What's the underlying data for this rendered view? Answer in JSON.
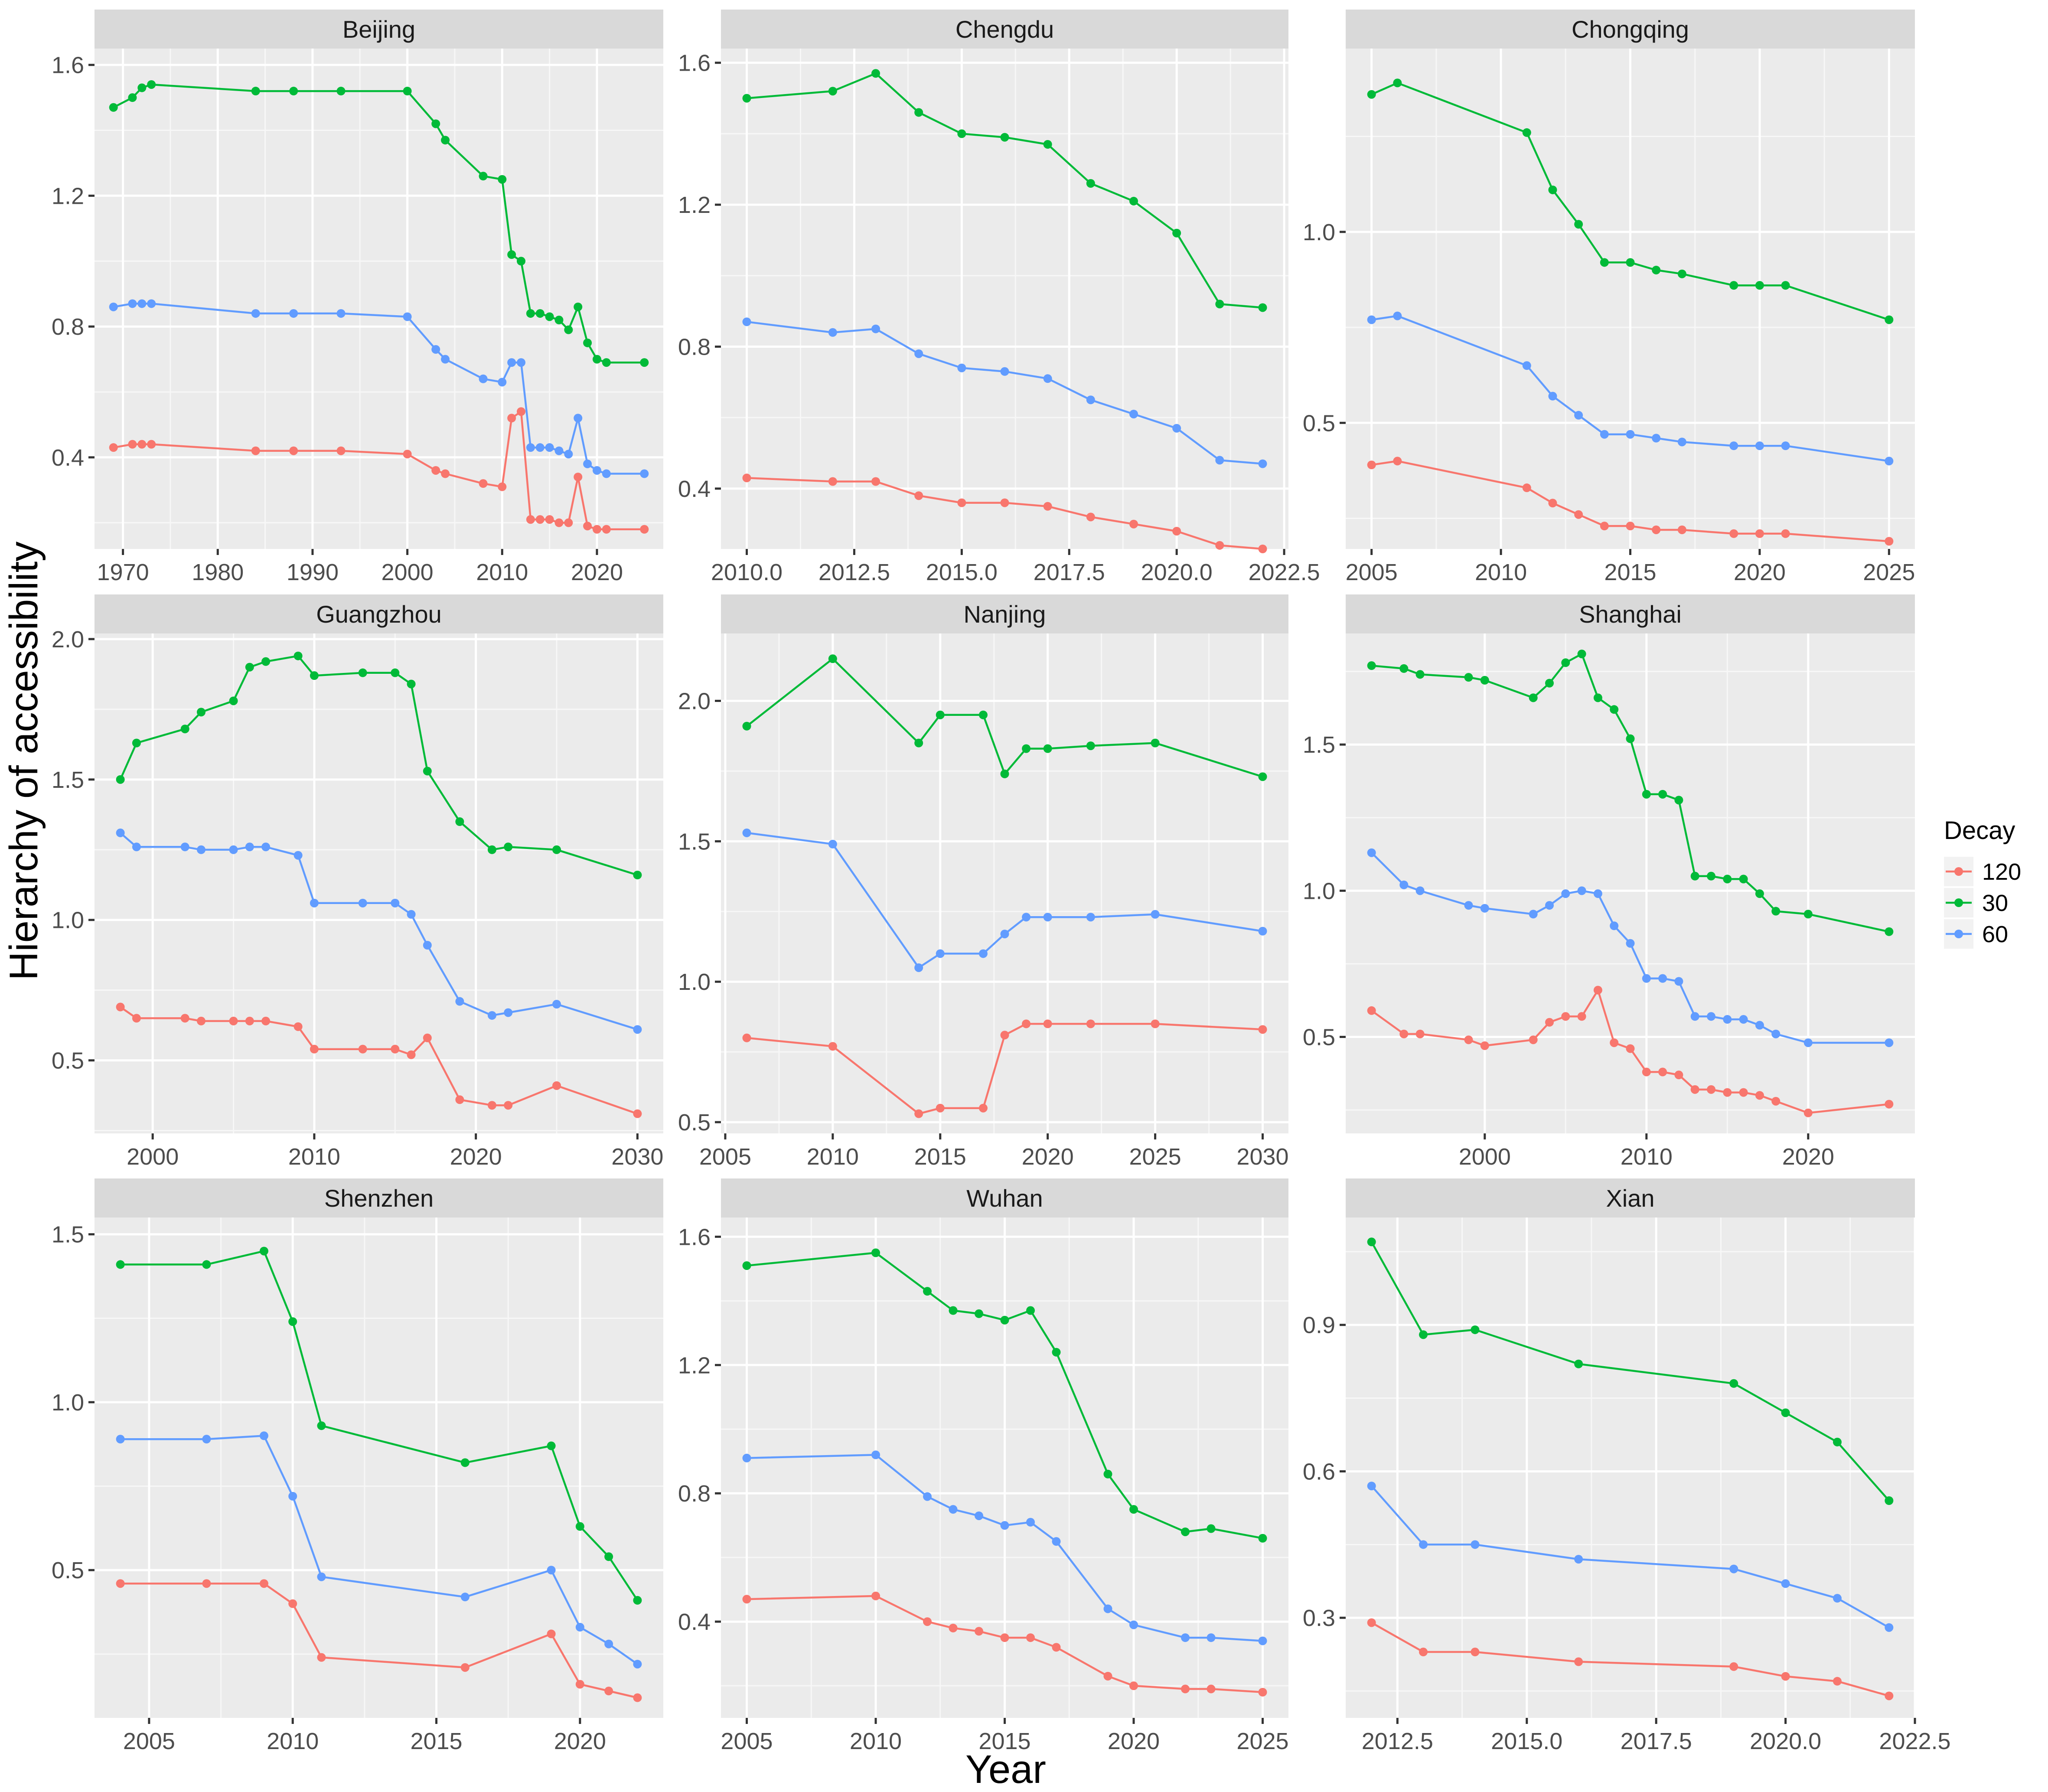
{
  "chart_data": {
    "type": "line",
    "facet_type": "facet_wrap",
    "xlabel": "Year",
    "ylabel": "Hierarchy of accessibility",
    "legend": {
      "title": "Decay",
      "placement": "right",
      "entries": [
        {
          "name": "120",
          "color": "#F8766D"
        },
        {
          "name": "30",
          "color": "#00BA38"
        },
        {
          "name": "60",
          "color": "#619CFF"
        }
      ]
    },
    "panels": [
      {
        "title": "Beijing",
        "xlim": [
          1967,
          2027
        ],
        "ylim": [
          0.12,
          1.65
        ],
        "xticks": [
          1970,
          1980,
          1990,
          2000,
          2010,
          2020
        ],
        "xtick_labels": [
          "1970",
          "1980",
          "1990",
          "2000",
          "2010",
          "2020"
        ],
        "yticks": [
          0.4,
          0.8,
          1.2,
          1.6
        ],
        "ytick_labels": [
          "0.4",
          "0.8",
          "1.2",
          "1.6"
        ],
        "x": [
          1969,
          1971,
          1972,
          1973,
          1984,
          1988,
          1993,
          2000,
          2003,
          2004,
          2008,
          2010,
          2011,
          2012,
          2013,
          2014,
          2015,
          2016,
          2017,
          2018,
          2019,
          2020,
          2021,
          2025
        ],
        "series": [
          {
            "name": "120",
            "values": [
              0.43,
              0.44,
              0.44,
              0.44,
              0.42,
              0.42,
              0.42,
              0.41,
              0.36,
              0.35,
              0.32,
              0.31,
              0.52,
              0.54,
              0.21,
              0.21,
              0.21,
              0.2,
              0.2,
              0.34,
              0.19,
              0.18,
              0.18,
              0.18
            ]
          },
          {
            "name": "30",
            "values": [
              1.47,
              1.5,
              1.53,
              1.54,
              1.52,
              1.52,
              1.52,
              1.52,
              1.42,
              1.37,
              1.26,
              1.25,
              1.02,
              1.0,
              0.84,
              0.84,
              0.83,
              0.82,
              0.79,
              0.86,
              0.75,
              0.7,
              0.69,
              0.69
            ]
          },
          {
            "name": "60",
            "values": [
              0.86,
              0.87,
              0.87,
              0.87,
              0.84,
              0.84,
              0.84,
              0.83,
              0.73,
              0.7,
              0.64,
              0.63,
              0.69,
              0.69,
              0.43,
              0.43,
              0.43,
              0.42,
              0.41,
              0.52,
              0.38,
              0.36,
              0.35,
              0.35
            ]
          }
        ]
      },
      {
        "title": "Chengdu",
        "xlim": [
          2009.4,
          2022.6
        ],
        "ylim": [
          0.23,
          1.64
        ],
        "xticks": [
          2010,
          2012.5,
          2015,
          2017.5,
          2020,
          2022.5
        ],
        "xtick_labels": [
          "2010.0",
          "2012.5",
          "2015.0",
          "2017.5",
          "2020.0",
          "2022.5"
        ],
        "yticks": [
          0.4,
          0.8,
          1.2,
          1.6
        ],
        "ytick_labels": [
          "0.4",
          "0.8",
          "1.2",
          "1.6"
        ],
        "x": [
          2010,
          2012,
          2013,
          2014,
          2015,
          2016,
          2017,
          2018,
          2019,
          2020,
          2021,
          2022
        ],
        "series": [
          {
            "name": "120",
            "values": [
              0.43,
              0.42,
              0.42,
              0.38,
              0.36,
              0.36,
              0.35,
              0.32,
              0.3,
              0.28,
              0.24,
              0.23
            ]
          },
          {
            "name": "30",
            "values": [
              1.5,
              1.52,
              1.57,
              1.46,
              1.4,
              1.39,
              1.37,
              1.26,
              1.21,
              1.12,
              0.92,
              0.91
            ]
          },
          {
            "name": "60",
            "values": [
              0.87,
              0.84,
              0.85,
              0.78,
              0.74,
              0.73,
              0.71,
              0.65,
              0.61,
              0.57,
              0.48,
              0.47
            ]
          }
        ]
      },
      {
        "title": "Chongqing",
        "xlim": [
          2004,
          2026
        ],
        "ylim": [
          0.17,
          1.48
        ],
        "xticks": [
          2005,
          2010,
          2015,
          2020,
          2025
        ],
        "xtick_labels": [
          "2005",
          "2010",
          "2015",
          "2020",
          "2025"
        ],
        "yticks": [
          0.5,
          1.0
        ],
        "ytick_labels": [
          "0.5",
          "1.0"
        ],
        "x": [
          2005,
          2006,
          2011,
          2012,
          2013,
          2014,
          2015,
          2016,
          2017,
          2019,
          2020,
          2021,
          2025
        ],
        "series": [
          {
            "name": "120",
            "values": [
              0.39,
              0.4,
              0.33,
              0.29,
              0.26,
              0.23,
              0.23,
              0.22,
              0.22,
              0.21,
              0.21,
              0.21,
              0.19
            ]
          },
          {
            "name": "30",
            "values": [
              1.36,
              1.39,
              1.26,
              1.11,
              1.02,
              0.92,
              0.92,
              0.9,
              0.89,
              0.86,
              0.86,
              0.86,
              0.77
            ]
          },
          {
            "name": "60",
            "values": [
              0.77,
              0.78,
              0.65,
              0.57,
              0.52,
              0.47,
              0.47,
              0.46,
              0.45,
              0.44,
              0.44,
              0.44,
              0.4
            ]
          }
        ]
      },
      {
        "title": "Guangzhou",
        "xlim": [
          1996.4,
          2031.6
        ],
        "ylim": [
          0.24,
          2.02
        ],
        "xticks": [
          2000,
          2010,
          2020,
          2030
        ],
        "xtick_labels": [
          "2000",
          "2010",
          "2020",
          "2030"
        ],
        "yticks": [
          0.5,
          1.0,
          1.5,
          2.0
        ],
        "ytick_labels": [
          "0.5",
          "1.0",
          "1.5",
          "2.0"
        ],
        "x": [
          1998,
          1999,
          2002,
          2003,
          2005,
          2006,
          2007,
          2009,
          2010,
          2013,
          2015,
          2016,
          2017,
          2019,
          2021,
          2022,
          2025,
          2030
        ],
        "series": [
          {
            "name": "120",
            "values": [
              0.69,
              0.65,
              0.65,
              0.64,
              0.64,
              0.64,
              0.64,
              0.62,
              0.54,
              0.54,
              0.54,
              0.52,
              0.58,
              0.36,
              0.34,
              0.34,
              0.41,
              0.31
            ]
          },
          {
            "name": "30",
            "values": [
              1.5,
              1.63,
              1.68,
              1.74,
              1.78,
              1.9,
              1.92,
              1.94,
              1.87,
              1.88,
              1.88,
              1.84,
              1.53,
              1.35,
              1.25,
              1.26,
              1.25,
              1.16
            ]
          },
          {
            "name": "60",
            "values": [
              1.31,
              1.26,
              1.26,
              1.25,
              1.25,
              1.26,
              1.26,
              1.23,
              1.06,
              1.06,
              1.06,
              1.02,
              0.91,
              0.71,
              0.66,
              0.67,
              0.7,
              0.61
            ]
          }
        ]
      },
      {
        "title": "Nanjing",
        "xlim": [
          2004.8,
          2031.2
        ],
        "ylim": [
          0.46,
          2.24
        ],
        "xticks": [
          2005,
          2010,
          2015,
          2020,
          2025,
          2030
        ],
        "xtick_labels": [
          "2005",
          "2010",
          "2015",
          "2020",
          "2025",
          "2030"
        ],
        "yticks": [
          0.5,
          1.0,
          1.5,
          2.0
        ],
        "ytick_labels": [
          "0.5",
          "1.0",
          "1.5",
          "2.0"
        ],
        "x": [
          2006,
          2010,
          2014,
          2015,
          2017,
          2018,
          2019,
          2020,
          2022,
          2025,
          2030
        ],
        "series": [
          {
            "name": "120",
            "values": [
              0.8,
              0.77,
              0.53,
              0.55,
              0.55,
              0.81,
              0.85,
              0.85,
              0.85,
              0.85,
              0.83
            ]
          },
          {
            "name": "30",
            "values": [
              1.91,
              2.15,
              1.85,
              1.95,
              1.95,
              1.74,
              1.83,
              1.83,
              1.84,
              1.85,
              1.73
            ]
          },
          {
            "name": "60",
            "values": [
              1.53,
              1.49,
              1.05,
              1.1,
              1.1,
              1.17,
              1.23,
              1.23,
              1.23,
              1.24,
              1.18
            ]
          }
        ]
      },
      {
        "title": "Shanghai",
        "xlim": [
          1991.4,
          2026.6
        ],
        "ylim": [
          0.17,
          1.88
        ],
        "xticks": [
          2000,
          2010,
          2020
        ],
        "xtick_labels": [
          "2000",
          "2010",
          "2020"
        ],
        "yticks": [
          0.5,
          1.0,
          1.5
        ],
        "ytick_labels": [
          "0.5",
          "1.0",
          "1.5"
        ],
        "x": [
          1993,
          1995,
          1996,
          1999,
          2000,
          2003,
          2004,
          2005,
          2006,
          2007,
          2008,
          2009,
          2010,
          2011,
          2012,
          2013,
          2014,
          2015,
          2016,
          2017,
          2018,
          2020,
          2025
        ],
        "series": [
          {
            "name": "120",
            "values": [
              0.59,
              0.51,
              0.51,
              0.49,
              0.47,
              0.49,
              0.55,
              0.57,
              0.57,
              0.66,
              0.48,
              0.46,
              0.38,
              0.38,
              0.37,
              0.32,
              0.32,
              0.31,
              0.31,
              0.3,
              0.28,
              0.24,
              0.27
            ]
          },
          {
            "name": "30",
            "values": [
              1.77,
              1.76,
              1.74,
              1.73,
              1.72,
              1.66,
              1.71,
              1.78,
              1.81,
              1.66,
              1.62,
              1.52,
              1.33,
              1.33,
              1.31,
              1.05,
              1.05,
              1.04,
              1.04,
              0.99,
              0.93,
              0.92,
              0.86
            ]
          },
          {
            "name": "60",
            "values": [
              1.13,
              1.02,
              1.0,
              0.95,
              0.94,
              0.92,
              0.95,
              0.99,
              1.0,
              0.99,
              0.88,
              0.82,
              0.7,
              0.7,
              0.69,
              0.57,
              0.57,
              0.56,
              0.56,
              0.54,
              0.51,
              0.48,
              0.48
            ]
          }
        ]
      },
      {
        "title": "Shenzhen",
        "xlim": [
          2003.1,
          2022.9
        ],
        "ylim": [
          0.06,
          1.55
        ],
        "xticks": [
          2005,
          2010,
          2015,
          2020
        ],
        "xtick_labels": [
          "2005",
          "2010",
          "2015",
          "2020"
        ],
        "yticks": [
          0.5,
          1.0,
          1.5
        ],
        "ytick_labels": [
          "0.5",
          "1.0",
          "1.5"
        ],
        "x": [
          2004,
          2007,
          2009,
          2010,
          2011,
          2016,
          2019,
          2020,
          2021,
          2022
        ],
        "series": [
          {
            "name": "120",
            "values": [
              0.46,
              0.46,
              0.46,
              0.4,
              0.24,
              0.21,
              0.31,
              0.16,
              0.14,
              0.12
            ]
          },
          {
            "name": "30",
            "values": [
              1.41,
              1.41,
              1.45,
              1.24,
              0.93,
              0.82,
              0.87,
              0.63,
              0.54,
              0.41
            ]
          },
          {
            "name": "60",
            "values": [
              0.89,
              0.89,
              0.9,
              0.72,
              0.48,
              0.42,
              0.5,
              0.33,
              0.28,
              0.22
            ]
          }
        ]
      },
      {
        "title": "Wuhan",
        "xlim": [
          2004,
          2026
        ],
        "ylim": [
          0.1,
          1.66
        ],
        "xticks": [
          2005,
          2010,
          2015,
          2020,
          2025
        ],
        "xtick_labels": [
          "2005",
          "2010",
          "2015",
          "2020",
          "2025"
        ],
        "yticks": [
          0.4,
          0.8,
          1.2,
          1.6
        ],
        "ytick_labels": [
          "0.4",
          "0.8",
          "1.2",
          "1.6"
        ],
        "x": [
          2005,
          2010,
          2012,
          2013,
          2014,
          2015,
          2016,
          2017,
          2019,
          2020,
          2022,
          2023,
          2025
        ],
        "series": [
          {
            "name": "120",
            "values": [
              0.47,
              0.48,
              0.4,
              0.38,
              0.37,
              0.35,
              0.35,
              0.32,
              0.23,
              0.2,
              0.19,
              0.19,
              0.18
            ]
          },
          {
            "name": "30",
            "values": [
              1.51,
              1.55,
              1.43,
              1.37,
              1.36,
              1.34,
              1.37,
              1.24,
              0.86,
              0.75,
              0.68,
              0.69,
              0.66
            ]
          },
          {
            "name": "60",
            "values": [
              0.91,
              0.92,
              0.79,
              0.75,
              0.73,
              0.7,
              0.71,
              0.65,
              0.44,
              0.39,
              0.35,
              0.35,
              0.34
            ]
          }
        ]
      },
      {
        "title": "Xian",
        "xlim": [
          2011.5,
          2022.5
        ],
        "ylim": [
          0.095,
          1.12
        ],
        "xticks": [
          2012.5,
          2015,
          2017.5,
          2020,
          2022.5
        ],
        "xtick_labels": [
          "2012.5",
          "2015.0",
          "2017.5",
          "2020.0",
          "2022.5"
        ],
        "yticks": [
          0.3,
          0.6,
          0.9
        ],
        "ytick_labels": [
          "0.3",
          "0.6",
          "0.9"
        ],
        "x": [
          2012,
          2013,
          2014,
          2016,
          2019,
          2020,
          2021,
          2022
        ],
        "series": [
          {
            "name": "120",
            "values": [
              0.29,
              0.23,
              0.23,
              0.21,
              0.2,
              0.18,
              0.17,
              0.14
            ]
          },
          {
            "name": "30",
            "values": [
              1.07,
              0.88,
              0.89,
              0.82,
              0.78,
              0.72,
              0.66,
              0.54
            ]
          },
          {
            "name": "60",
            "values": [
              0.57,
              0.45,
              0.45,
              0.42,
              0.4,
              0.37,
              0.34,
              0.28
            ]
          }
        ]
      }
    ]
  }
}
